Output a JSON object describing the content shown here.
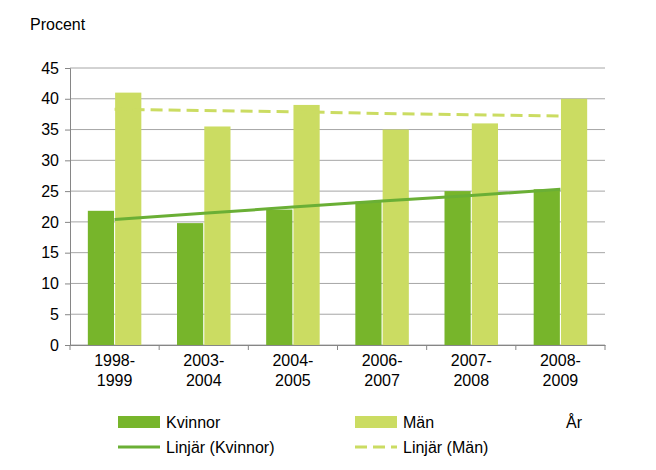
{
  "chart_data": {
    "type": "bar",
    "y_label": "Procent",
    "x_label": "År",
    "categories": [
      "1998-1999",
      "2003-2004",
      "2004-2005",
      "2006-2007",
      "2007-2008",
      "2008-2009"
    ],
    "series": [
      {
        "name": "Kvinnor",
        "type": "bar",
        "color": "#77b52b",
        "values": [
          21.8,
          19.8,
          22,
          23.3,
          25,
          25.3
        ]
      },
      {
        "name": "Män",
        "type": "bar",
        "color": "#cbdc62",
        "values": [
          41,
          35.5,
          39,
          35,
          36,
          40
        ]
      },
      {
        "name": "Linjär (Kvinnor)",
        "type": "line",
        "line_style": "solid",
        "color": "#6aaf35",
        "values": [
          20.4,
          21.4,
          22.4,
          23.4,
          24.3,
          25.3
        ]
      },
      {
        "name": "Linjär (Män)",
        "type": "line",
        "line_style": "dashed",
        "color": "#cbdc62",
        "values": [
          38.3,
          38.1,
          37.9,
          37.6,
          37.4,
          37.2
        ]
      }
    ],
    "ylim": [
      0,
      45
    ],
    "yticks": [
      0,
      5,
      10,
      15,
      20,
      25,
      30,
      35,
      40,
      45
    ],
    "grid": true,
    "legend": "bottom"
  }
}
